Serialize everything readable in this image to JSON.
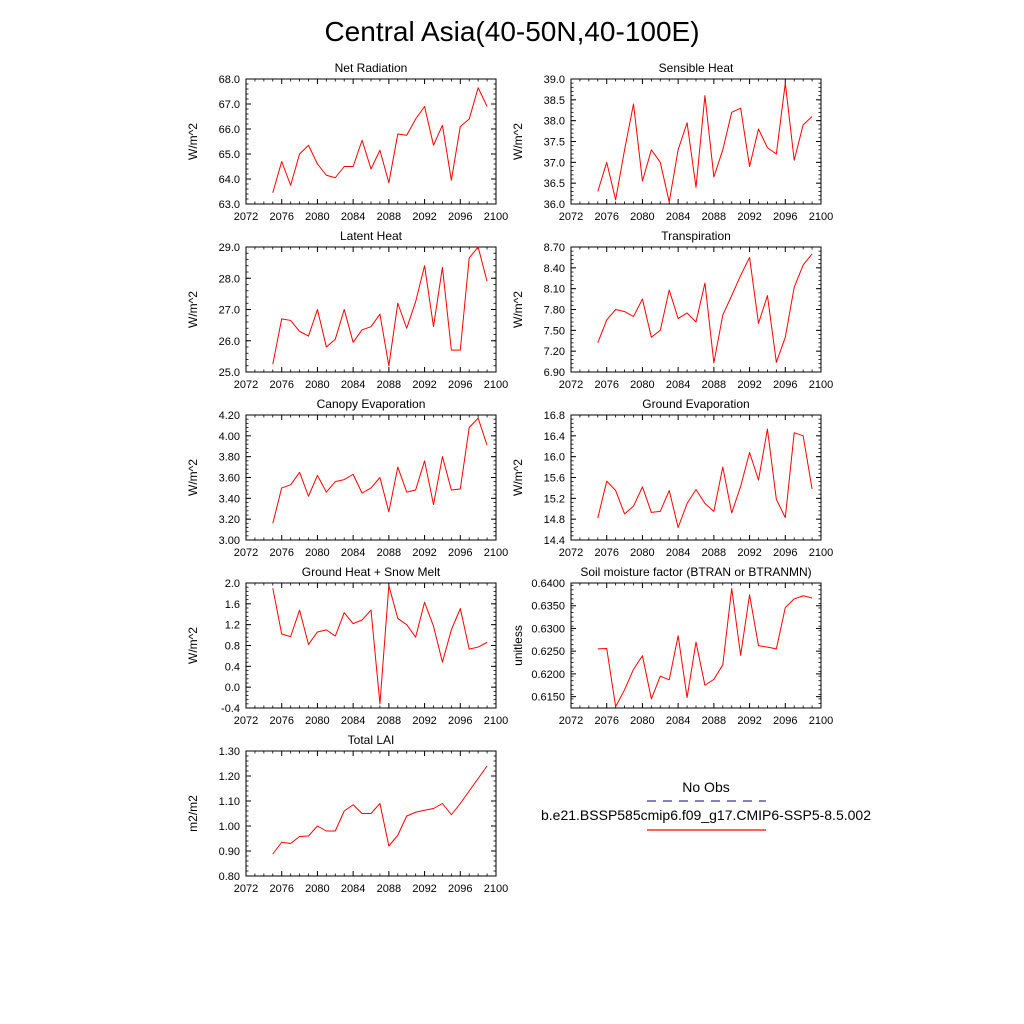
{
  "figure": {
    "title": "Central Asia(40-50N,40-100E)",
    "legend": {
      "obs_label": "No Obs",
      "model_label": "b.e21.BSSP585cmip6.f09_g17.CMIP6-SSP5-8.5.002",
      "obs_color": "#3333aa",
      "model_color": "#ff0000"
    }
  },
  "chart_data": [
    {
      "type": "line",
      "title": "Net Radiation",
      "ylabel": "W/m^2",
      "xlim": [
        2072,
        2100
      ],
      "ylim": [
        63.0,
        68.0
      ],
      "xticks": [
        "2072",
        "2076",
        "2080",
        "2084",
        "2088",
        "2092",
        "2096",
        "2100"
      ],
      "yticks": [
        "63.0",
        "64.0",
        "65.0",
        "66.0",
        "67.0",
        "68.0"
      ],
      "series": [
        {
          "color": "#ff0000",
          "x": [
            2075,
            2076,
            2077,
            2078,
            2079,
            2080,
            2081,
            2082,
            2083,
            2084,
            2085,
            2086,
            2087,
            2088,
            2089,
            2090,
            2091,
            2092,
            2093,
            2094,
            2095,
            2096,
            2097,
            2098,
            2099
          ],
          "y": [
            63.45,
            64.7,
            63.75,
            65.0,
            65.35,
            64.6,
            64.15,
            64.05,
            64.5,
            64.5,
            65.55,
            64.4,
            65.15,
            63.85,
            65.8,
            65.75,
            66.4,
            66.9,
            65.35,
            66.15,
            63.95,
            66.1,
            66.4,
            67.65,
            66.9
          ]
        }
      ]
    },
    {
      "type": "line",
      "title": "Sensible Heat",
      "ylabel": "W/m^2",
      "xlim": [
        2072,
        2100
      ],
      "ylim": [
        36.0,
        39.0
      ],
      "xticks": [
        "2072",
        "2076",
        "2080",
        "2084",
        "2088",
        "2092",
        "2096",
        "2100"
      ],
      "yticks": [
        "36.0",
        "36.5",
        "37.0",
        "37.5",
        "38.0",
        "38.5",
        "39.0"
      ],
      "series": [
        {
          "color": "#ff0000",
          "x": [
            2075,
            2076,
            2077,
            2078,
            2079,
            2080,
            2081,
            2082,
            2083,
            2084,
            2085,
            2086,
            2087,
            2088,
            2089,
            2090,
            2091,
            2092,
            2093,
            2094,
            2095,
            2096,
            2097,
            2098,
            2099
          ],
          "y": [
            36.3,
            37.0,
            36.1,
            37.3,
            38.4,
            36.55,
            37.3,
            37.0,
            36.05,
            37.3,
            37.95,
            36.4,
            38.6,
            36.65,
            37.3,
            38.2,
            38.3,
            36.9,
            37.8,
            37.35,
            37.2,
            38.9,
            37.05,
            37.9,
            38.1
          ]
        }
      ]
    },
    {
      "type": "line",
      "title": "Latent Heat",
      "ylabel": "W/m^2",
      "xlim": [
        2072,
        2100
      ],
      "ylim": [
        25.0,
        29.0
      ],
      "xticks": [
        "2072",
        "2076",
        "2080",
        "2084",
        "2088",
        "2092",
        "2096",
        "2100"
      ],
      "yticks": [
        "25.0",
        "26.0",
        "27.0",
        "28.0",
        "29.0"
      ],
      "series": [
        {
          "color": "#ff0000",
          "x": [
            2075,
            2076,
            2077,
            2078,
            2079,
            2080,
            2081,
            2082,
            2083,
            2084,
            2085,
            2086,
            2087,
            2088,
            2089,
            2090,
            2091,
            2092,
            2093,
            2094,
            2095,
            2096,
            2097,
            2098,
            2099
          ],
          "y": [
            25.25,
            26.7,
            26.65,
            26.3,
            26.15,
            27.0,
            25.8,
            26.05,
            27.0,
            25.95,
            26.35,
            26.45,
            26.85,
            25.2,
            27.2,
            26.4,
            27.25,
            28.4,
            26.45,
            28.35,
            25.7,
            25.7,
            28.65,
            29.0,
            27.9
          ]
        }
      ]
    },
    {
      "type": "line",
      "title": "Transpiration",
      "ylabel": "W/m^2",
      "xlim": [
        2072,
        2100
      ],
      "ylim": [
        6.9,
        8.7
      ],
      "xticks": [
        "2072",
        "2076",
        "2080",
        "2084",
        "2088",
        "2092",
        "2096",
        "2100"
      ],
      "yticks": [
        "6.90",
        "7.20",
        "7.50",
        "7.80",
        "8.10",
        "8.40",
        "8.70"
      ],
      "series": [
        {
          "color": "#ff0000",
          "x": [
            2075,
            2076,
            2077,
            2078,
            2079,
            2080,
            2081,
            2082,
            2083,
            2084,
            2085,
            2086,
            2087,
            2088,
            2089,
            2090,
            2091,
            2092,
            2093,
            2094,
            2095,
            2096,
            2097,
            2098,
            2099
          ],
          "y": [
            7.32,
            7.65,
            7.8,
            7.77,
            7.7,
            7.95,
            7.4,
            7.5,
            8.08,
            7.67,
            7.75,
            7.62,
            8.18,
            7.03,
            7.72,
            8.0,
            8.29,
            8.55,
            7.6,
            8.0,
            7.04,
            7.4,
            8.12,
            8.44,
            8.6
          ]
        }
      ]
    },
    {
      "type": "line",
      "title": "Canopy Evaporation",
      "ylabel": "W/m^2",
      "xlim": [
        2072,
        2100
      ],
      "ylim": [
        3.0,
        4.2
      ],
      "xticks": [
        "2072",
        "2076",
        "2080",
        "2084",
        "2088",
        "2092",
        "2096",
        "2100"
      ],
      "yticks": [
        "3.00",
        "3.20",
        "3.40",
        "3.60",
        "3.80",
        "4.00",
        "4.20"
      ],
      "series": [
        {
          "color": "#ff0000",
          "x": [
            2075,
            2076,
            2077,
            2078,
            2079,
            2080,
            2081,
            2082,
            2083,
            2084,
            2085,
            2086,
            2087,
            2088,
            2089,
            2090,
            2091,
            2092,
            2093,
            2094,
            2095,
            2096,
            2097,
            2098,
            2099
          ],
          "y": [
            3.16,
            3.5,
            3.53,
            3.65,
            3.42,
            3.62,
            3.46,
            3.56,
            3.58,
            3.63,
            3.45,
            3.5,
            3.6,
            3.27,
            3.7,
            3.46,
            3.48,
            3.76,
            3.34,
            3.8,
            3.48,
            3.49,
            4.08,
            4.17,
            3.91
          ]
        }
      ]
    },
    {
      "type": "line",
      "title": "Ground Evaporation",
      "ylabel": "W/m^2",
      "xlim": [
        2072,
        2100
      ],
      "ylim": [
        14.4,
        16.8
      ],
      "xticks": [
        "2072",
        "2076",
        "2080",
        "2084",
        "2088",
        "2092",
        "2096",
        "2100"
      ],
      "yticks": [
        "14.4",
        "14.8",
        "15.2",
        "15.6",
        "16.0",
        "16.4",
        "16.8"
      ],
      "series": [
        {
          "color": "#ff0000",
          "x": [
            2075,
            2076,
            2077,
            2078,
            2079,
            2080,
            2081,
            2082,
            2083,
            2084,
            2085,
            2086,
            2087,
            2088,
            2089,
            2090,
            2091,
            2092,
            2093,
            2094,
            2095,
            2096,
            2097,
            2098,
            2099
          ],
          "y": [
            14.82,
            15.53,
            15.35,
            14.9,
            15.05,
            15.42,
            14.93,
            14.95,
            15.35,
            14.64,
            15.1,
            15.37,
            15.1,
            14.95,
            15.8,
            14.92,
            15.43,
            16.08,
            15.55,
            16.53,
            15.18,
            14.83,
            16.46,
            16.4,
            15.38
          ]
        }
      ]
    },
    {
      "type": "line",
      "title": "Ground Heat + Snow Melt",
      "ylabel": "W/m^2",
      "xlim": [
        2072,
        2100
      ],
      "ylim": [
        -0.4,
        2.0
      ],
      "xticks": [
        "2072",
        "2076",
        "2080",
        "2084",
        "2088",
        "2092",
        "2096",
        "2100"
      ],
      "yticks": [
        "-0.4",
        "0.0",
        "0.4",
        "0.8",
        "1.2",
        "1.6",
        "2.0"
      ],
      "series": [
        {
          "color": "#ff0000",
          "x": [
            2075,
            2076,
            2077,
            2078,
            2079,
            2080,
            2081,
            2082,
            2083,
            2084,
            2085,
            2086,
            2087,
            2088,
            2089,
            2090,
            2091,
            2092,
            2093,
            2094,
            2095,
            2096,
            2097,
            2098,
            2099
          ],
          "y": [
            1.9,
            1.02,
            0.97,
            1.48,
            0.82,
            1.06,
            1.1,
            0.98,
            1.43,
            1.22,
            1.29,
            1.48,
            -0.32,
            1.95,
            1.32,
            1.2,
            0.96,
            1.63,
            1.17,
            0.48,
            1.1,
            1.51,
            0.73,
            0.77,
            0.86
          ]
        }
      ]
    },
    {
      "type": "line",
      "title": "Soil moisture factor (BTRAN or BTRANMN)",
      "ylabel": "unitless",
      "xlim": [
        2072,
        2100
      ],
      "ylim": [
        0.6125,
        0.64
      ],
      "xticks": [
        "2072",
        "2076",
        "2080",
        "2084",
        "2088",
        "2092",
        "2096",
        "2100"
      ],
      "yticks": [
        "0.6150",
        "0.6200",
        "0.6250",
        "0.6300",
        "0.6350",
        "0.6400"
      ],
      "series": [
        {
          "color": "#ff0000",
          "x": [
            2075,
            2076,
            2077,
            2078,
            2079,
            2080,
            2081,
            2082,
            2083,
            2084,
            2085,
            2086,
            2087,
            2088,
            2089,
            2090,
            2091,
            2092,
            2093,
            2094,
            2095,
            2096,
            2097,
            2098,
            2099
          ],
          "y": [
            0.6255,
            0.6256,
            0.6128,
            0.6165,
            0.621,
            0.624,
            0.6145,
            0.6195,
            0.6187,
            0.6284,
            0.6148,
            0.627,
            0.6175,
            0.6188,
            0.622,
            0.6388,
            0.6241,
            0.6374,
            0.6262,
            0.6259,
            0.6255,
            0.6346,
            0.6365,
            0.6372,
            0.6367
          ]
        }
      ]
    },
    {
      "type": "line",
      "title": "Total LAI",
      "ylabel": "m2/m2",
      "xlim": [
        2072,
        2100
      ],
      "ylim": [
        0.8,
        1.3
      ],
      "xticks": [
        "2072",
        "2076",
        "2080",
        "2084",
        "2088",
        "2092",
        "2096",
        "2100"
      ],
      "yticks": [
        "0.80",
        "0.90",
        "1.00",
        "1.10",
        "1.20",
        "1.30"
      ],
      "series": [
        {
          "color": "#ff0000",
          "x": [
            2075,
            2076,
            2077,
            2078,
            2079,
            2080,
            2081,
            2082,
            2083,
            2084,
            2085,
            2086,
            2087,
            2088,
            2089,
            2090,
            2091,
            2092,
            2093,
            2094,
            2095,
            2096,
            2097,
            2098,
            2099
          ],
          "y": [
            0.888,
            0.935,
            0.93,
            0.958,
            0.96,
            1.0,
            0.98,
            0.98,
            1.06,
            1.085,
            1.05,
            1.05,
            1.09,
            0.92,
            0.963,
            1.04,
            1.055,
            1.063,
            1.07,
            1.09,
            1.045,
            1.09,
            1.14,
            1.19,
            1.24
          ]
        }
      ]
    }
  ]
}
